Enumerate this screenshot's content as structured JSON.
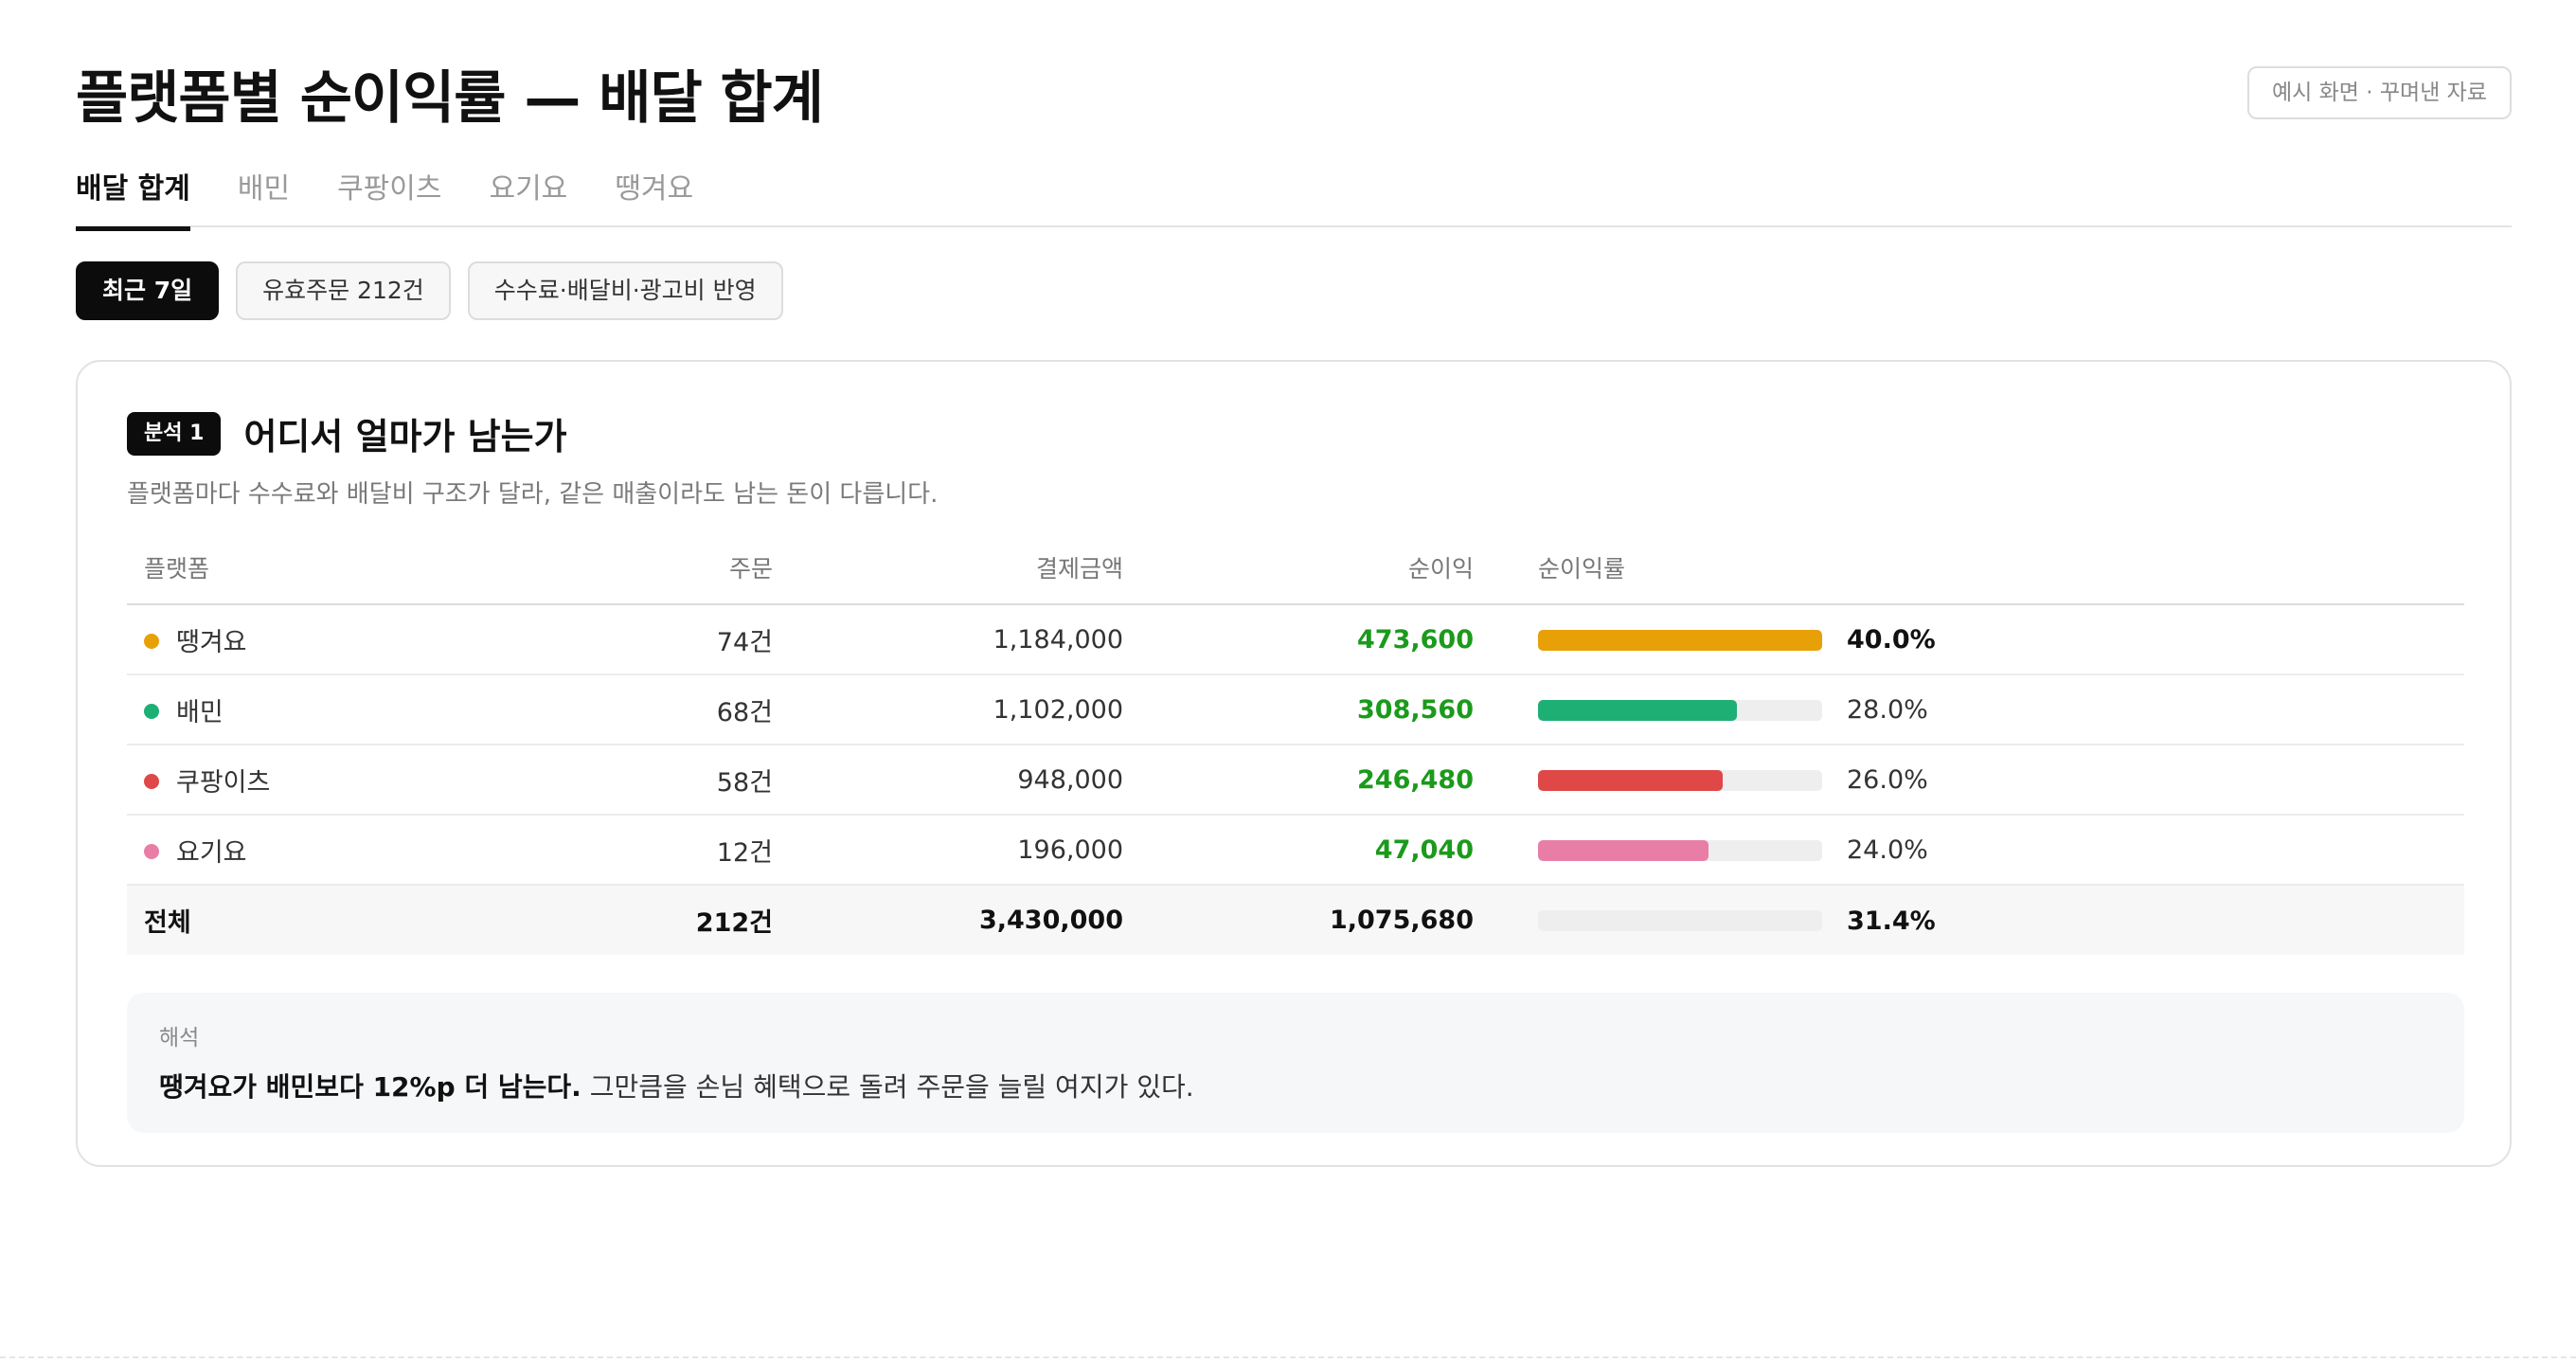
{
  "header": {
    "title": "플랫폼별 순이익률 — 배달 합계",
    "sample_badge": "예시 화면 · 꾸며낸 자료"
  },
  "tabs": [
    {
      "label": "배달 합계",
      "active": true
    },
    {
      "label": "배민",
      "active": false
    },
    {
      "label": "쿠팡이츠",
      "active": false
    },
    {
      "label": "요기요",
      "active": false
    },
    {
      "label": "땡겨요",
      "active": false
    }
  ],
  "chips": [
    {
      "label": "최근 7일",
      "style": "dark"
    },
    {
      "label": "유효주문 212건",
      "style": "light"
    },
    {
      "label": "수수료·배달비·광고비 반영",
      "style": "light"
    }
  ],
  "analysis": {
    "tag": "분석 1",
    "title": "어디서 얼마가 남는가",
    "subtitle": "플랫폼마다 수수료와 배달비 구조가 달라, 같은 매출이라도 남는 돈이 다릅니다.",
    "columns": [
      "플랫폼",
      "주문",
      "결제금액",
      "순이익",
      "순이익률"
    ],
    "rows": [
      {
        "name": "땡겨요",
        "color": "#e8a007",
        "orders": "74건",
        "payment": "1,184,000",
        "profit": "473,600",
        "rate_label": "40.0%",
        "rate": 0.4,
        "emphasis": true
      },
      {
        "name": "배민",
        "color": "#1daf74",
        "orders": "68건",
        "payment": "1,102,000",
        "profit": "308,560",
        "rate_label": "28.0%",
        "rate": 0.28,
        "emphasis": false
      },
      {
        "name": "쿠팡이츠",
        "color": "#e04747",
        "orders": "58건",
        "payment": "948,000",
        "profit": "246,480",
        "rate_label": "26.0%",
        "rate": 0.26,
        "emphasis": false
      },
      {
        "name": "요기요",
        "color": "#e87ea5",
        "orders": "12건",
        "payment": "196,000",
        "profit": "47,040",
        "rate_label": "24.0%",
        "rate": 0.24,
        "emphasis": false
      }
    ],
    "total": {
      "name": "전체",
      "orders": "212건",
      "payment": "3,430,000",
      "profit": "1,075,680",
      "rate_label": "31.4%"
    },
    "bar_scale_max": 0.4
  },
  "note": {
    "label": "해석",
    "bold": "땡겨요가 배민보다 12%p 더 남는다.",
    "text": " 그만큼을 손님 혜택으로 돌려 주문을 늘릴 여지가 있다."
  },
  "colors": {
    "profit": "#1b9a1b",
    "accent_dark": "#0c0c0c"
  }
}
